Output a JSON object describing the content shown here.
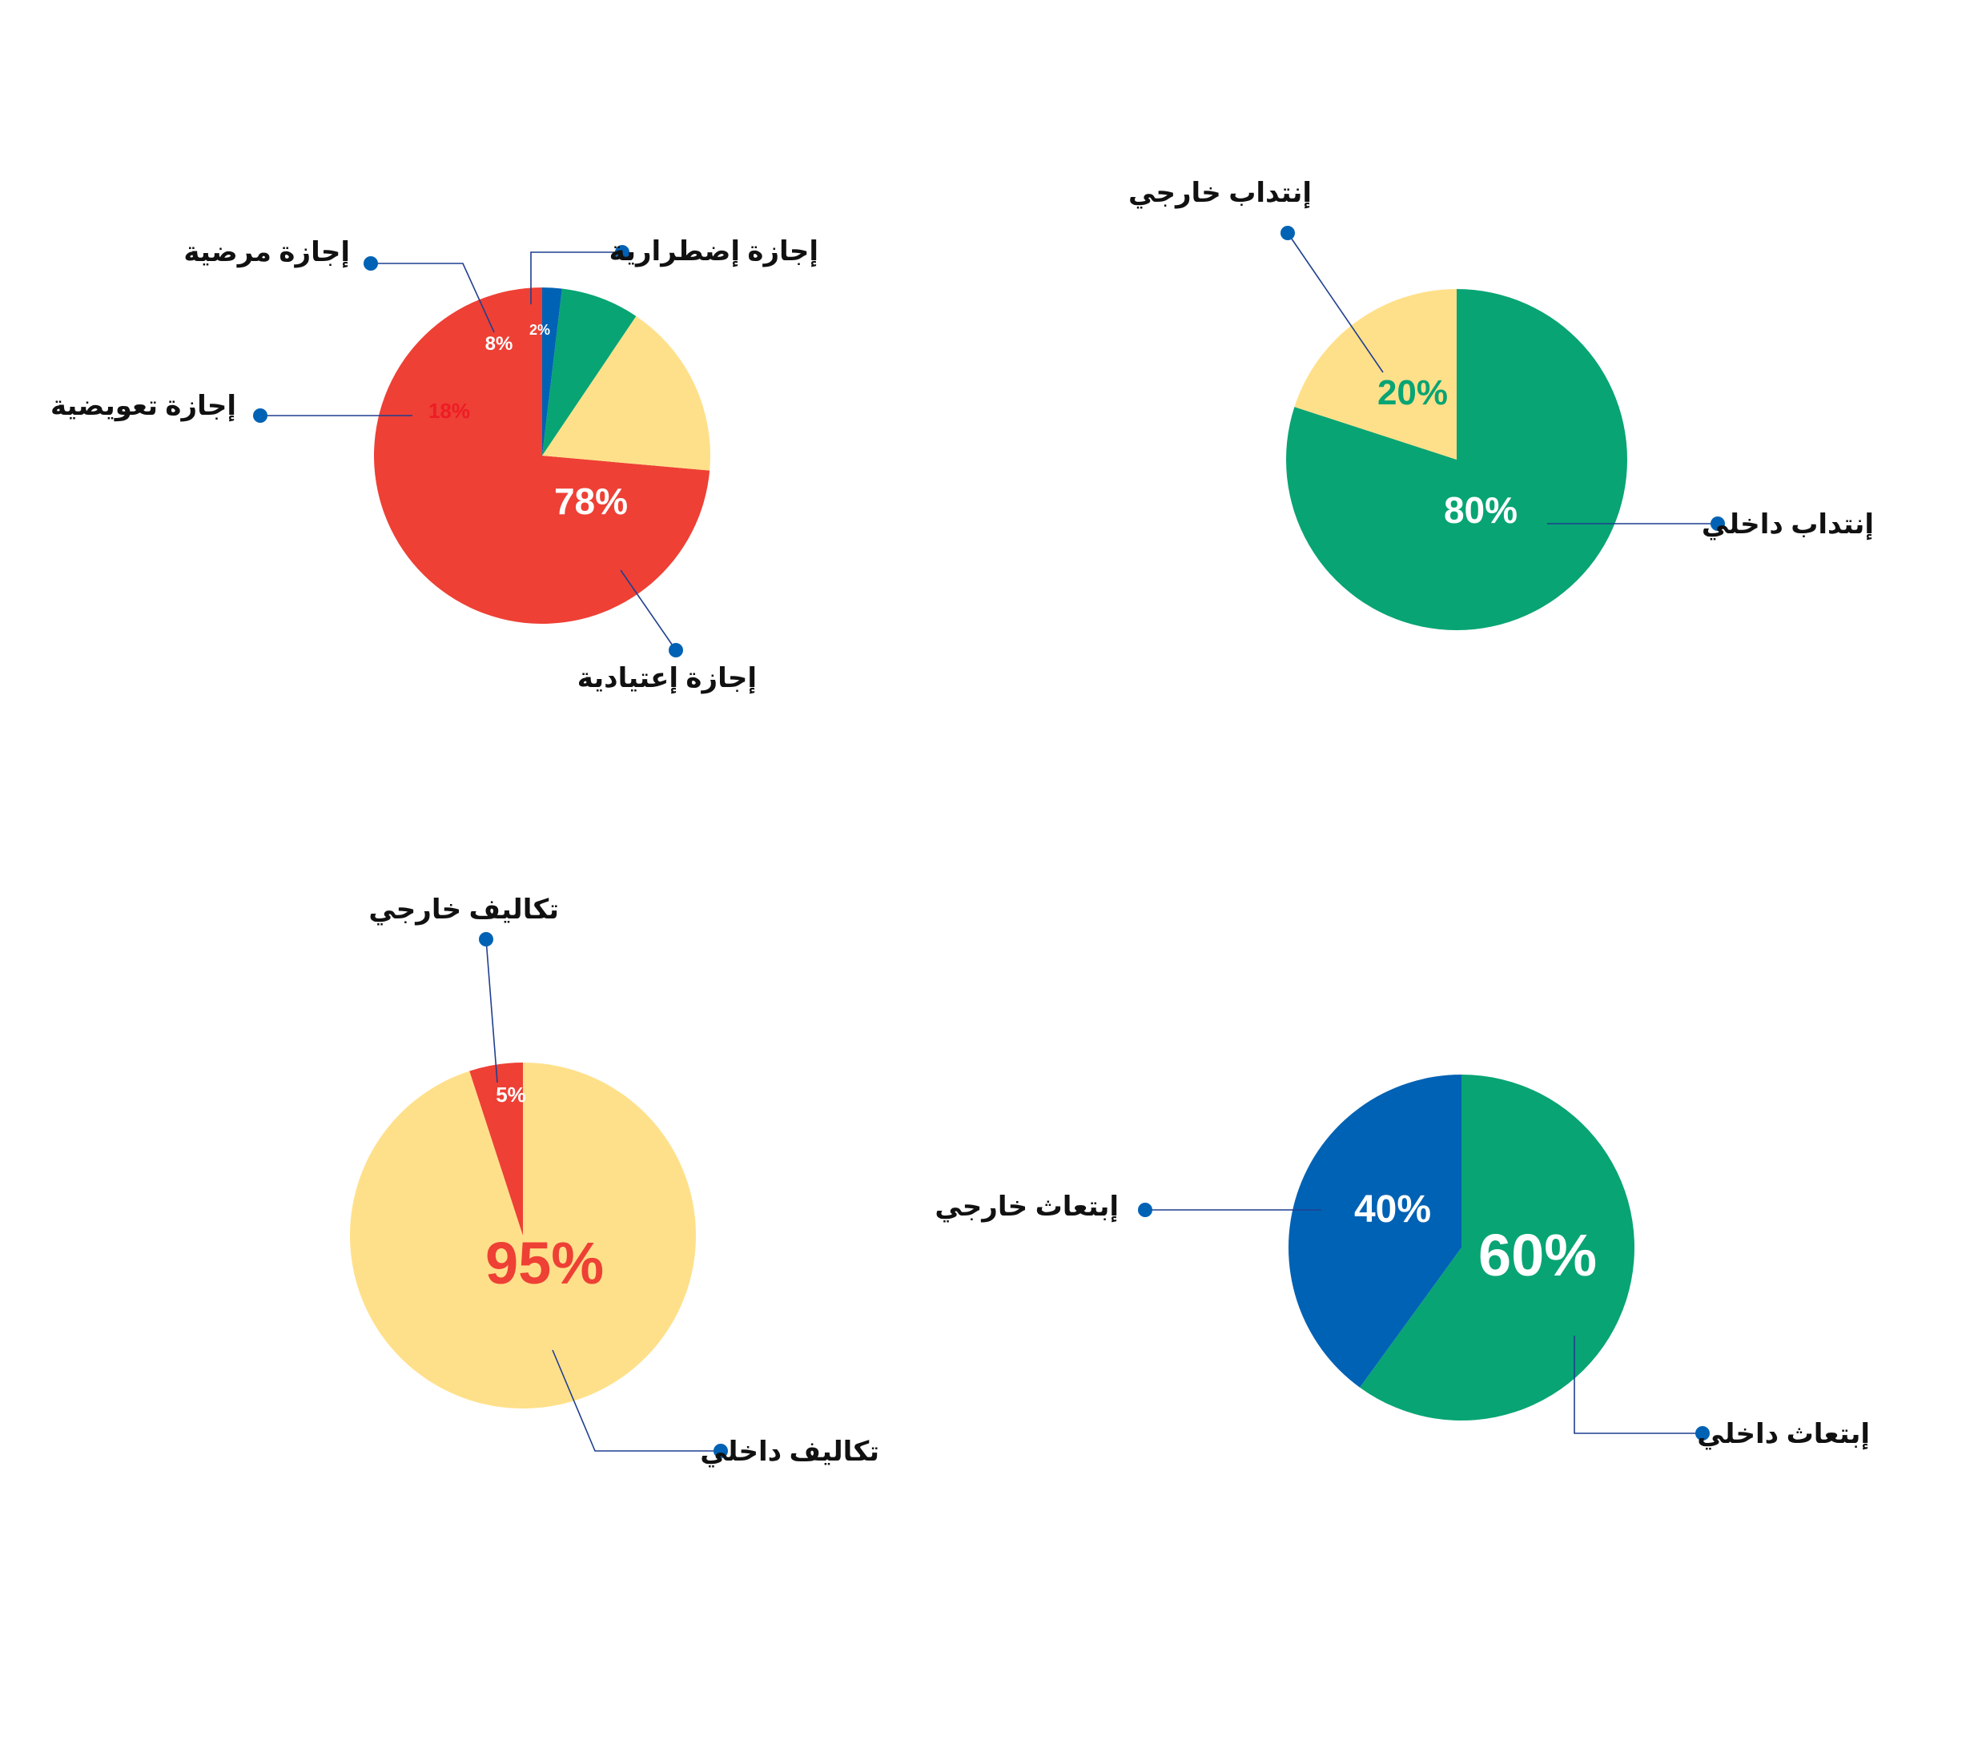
{
  "colors": {
    "red": "#ee4035",
    "yellow": "#ffe08a",
    "green": "#08a474",
    "blue": "#0062b4",
    "leader": "#1f3f8f",
    "label": "#111111",
    "white": "#ffffff"
  },
  "chart_data": [
    {
      "type": "pie",
      "categories": [
        "إجازة إعتيادية",
        "إجازة تعويضية",
        "إجازة مرضية",
        "إجازة إضطرارية"
      ],
      "values": [
        78,
        18,
        8,
        2
      ],
      "value_labels": [
        "78%",
        "18%",
        "8%",
        "2%"
      ],
      "slice_colors": [
        "#ee4035",
        "#ffe08a",
        "#08a474",
        "#0062b4"
      ],
      "value_label_colors": [
        "#ffffff",
        "#ee1c25",
        "#ffffff",
        "#ffffff"
      ]
    },
    {
      "type": "pie",
      "categories": [
        "إنتداب داخلي",
        "إنتداب خارجي"
      ],
      "values": [
        80,
        20
      ],
      "value_labels": [
        "80%",
        "20%"
      ],
      "slice_colors": [
        "#08a474",
        "#ffe08a"
      ],
      "value_label_colors": [
        "#ffffff",
        "#08a474"
      ]
    },
    {
      "type": "pie",
      "categories": [
        "تكاليف داخلي",
        "تكاليف خارجي"
      ],
      "values": [
        95,
        5
      ],
      "value_labels": [
        "95%",
        "5%"
      ],
      "slice_colors": [
        "#ffe08a",
        "#ee4035"
      ],
      "value_label_colors": [
        "#ee4035",
        "#ffffff"
      ]
    },
    {
      "type": "pie",
      "categories": [
        "إبتعاث داخلي",
        "إبتعاث خارجي"
      ],
      "values": [
        60,
        40
      ],
      "value_labels": [
        "60%",
        "40%"
      ],
      "slice_colors": [
        "#08a474",
        "#0062b4"
      ],
      "value_label_colors": [
        "#ffffff",
        "#ffffff"
      ]
    }
  ]
}
